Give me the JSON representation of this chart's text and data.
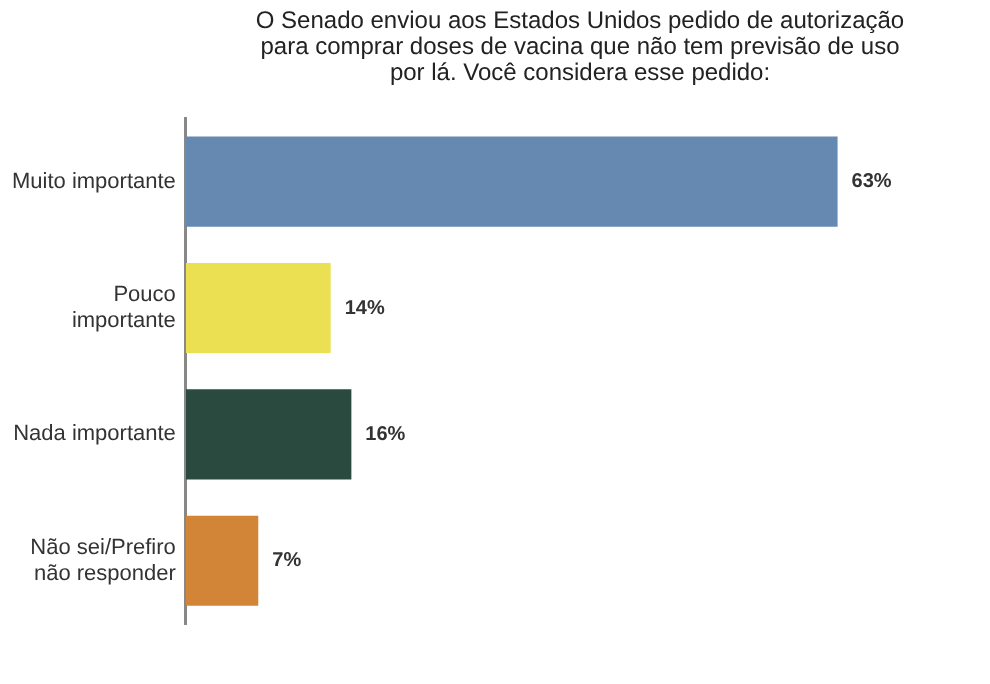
{
  "chart_data": {
    "type": "bar",
    "orientation": "horizontal",
    "title": "O Senado enviou aos Estados Unidos pedido de autorização para comprar doses de vacina que não tem previsão de uso por lá. Você considera esse pedido:",
    "categories": [
      "Muito importante",
      "Pouco importante",
      "Nada importante",
      "Não sei/Prefiro não responder"
    ],
    "values": [
      63,
      14,
      16,
      7
    ],
    "colors": [
      "#6689b2",
      "#ebe052",
      "#2b4a3f",
      "#d28537"
    ],
    "value_labels": [
      "63%",
      "14%",
      "16%",
      "7%"
    ]
  }
}
